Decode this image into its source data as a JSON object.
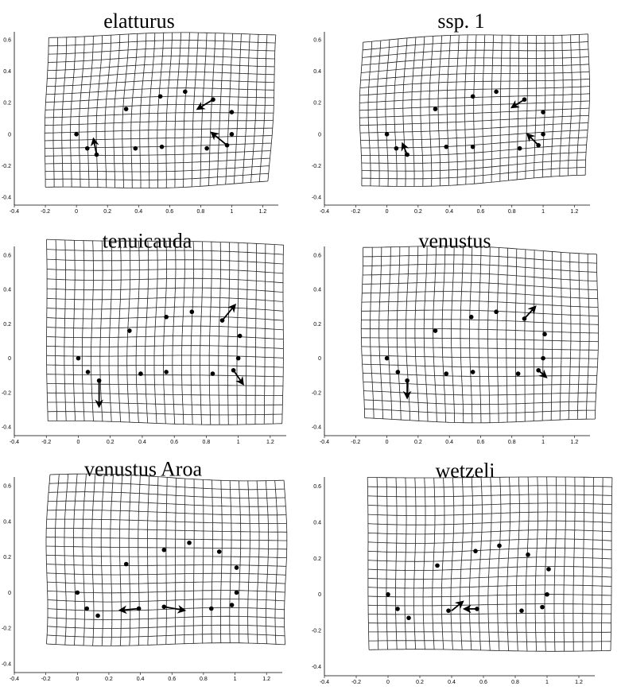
{
  "figure": {
    "panels": [
      {
        "title": "elatturus",
        "x_ticks": [
          "-0.4",
          "-0.2",
          "0",
          "0.2",
          "0.4",
          "0.6",
          "0.8",
          "1",
          "1.2"
        ],
        "y_ticks": [
          "0.6",
          "0.4",
          "0.2",
          "0",
          "-0.2",
          "-0.4"
        ]
      },
      {
        "title": "ssp. 1",
        "x_ticks": [
          "-0.4",
          "-0.2",
          "0",
          "0.2",
          "0.4",
          "0.6",
          "0.8",
          "1",
          "1.2"
        ],
        "y_ticks": [
          "0.6",
          "0.4",
          "0.2",
          "0",
          "-0.2",
          "-0.4"
        ]
      },
      {
        "title": "tenuicauda",
        "x_ticks": [
          "-0.4",
          "-0.2",
          "0",
          "0.2",
          "0.4",
          "0.6",
          "0.8",
          "1",
          "1.2"
        ],
        "y_ticks": [
          "0.6",
          "0.4",
          "0.2",
          "0",
          "-0.2",
          "-0.4"
        ]
      },
      {
        "title": "venustus",
        "x_ticks": [
          "-0.4",
          "-0.2",
          "0",
          "0.2",
          "0.4",
          "0.6",
          "0.8",
          "1",
          "1.2"
        ],
        "y_ticks": [
          "0.6",
          "0.4",
          "0.2",
          "0",
          "-0.2",
          "-0.4"
        ]
      },
      {
        "title": "venustus Aroa",
        "x_ticks": [
          "-0.4",
          "-0.2",
          "0",
          "0.2",
          "0.4",
          "0.6",
          "0.8",
          "1",
          "1.2"
        ],
        "y_ticks": [
          "0.6",
          "0.4",
          "0.2",
          "0",
          "-0.2",
          "-0.4"
        ]
      },
      {
        "title": "wetzeli",
        "x_ticks": [
          "-0.4",
          "-0.2",
          "0",
          "0.2",
          "0.4",
          "0.6",
          "0.8",
          "1",
          "1.2"
        ],
        "y_ticks": [
          "0.6",
          "0.4",
          "0.2",
          "0",
          "-0.2",
          "-0.4"
        ]
      }
    ]
  },
  "chart_data": [
    {
      "type": "scatter",
      "title": "elatturus",
      "xlim": [
        -0.4,
        1.3
      ],
      "ylim": [
        -0.45,
        0.65
      ],
      "grid": "deformation grid",
      "landmarks": [
        {
          "x": 0.0,
          "y": 0.0
        },
        {
          "x": 0.07,
          "y": -0.09
        },
        {
          "x": 0.13,
          "y": -0.13
        },
        {
          "x": 0.32,
          "y": 0.16
        },
        {
          "x": 0.38,
          "y": -0.09
        },
        {
          "x": 0.54,
          "y": 0.24
        },
        {
          "x": 0.55,
          "y": -0.08
        },
        {
          "x": 0.7,
          "y": 0.27
        },
        {
          "x": 0.88,
          "y": 0.22
        },
        {
          "x": 1.0,
          "y": 0.14
        },
        {
          "x": 1.0,
          "y": 0.0
        },
        {
          "x": 0.84,
          "y": -0.09
        },
        {
          "x": 0.97,
          "y": -0.07
        }
      ],
      "vectors": [
        {
          "x": 0.13,
          "y": -0.13,
          "dx": -0.02,
          "dy": 0.1
        },
        {
          "x": 0.88,
          "y": 0.22,
          "dx": -0.1,
          "dy": -0.06
        },
        {
          "x": 0.97,
          "y": -0.07,
          "dx": -0.1,
          "dy": 0.08
        }
      ]
    },
    {
      "type": "scatter",
      "title": "ssp. 1",
      "xlim": [
        -0.4,
        1.3
      ],
      "ylim": [
        -0.45,
        0.65
      ],
      "grid": "deformation grid",
      "landmarks": [
        {
          "x": 0.0,
          "y": 0.0
        },
        {
          "x": 0.06,
          "y": -0.09
        },
        {
          "x": 0.13,
          "y": -0.13
        },
        {
          "x": 0.31,
          "y": 0.16
        },
        {
          "x": 0.38,
          "y": -0.08
        },
        {
          "x": 0.55,
          "y": 0.24
        },
        {
          "x": 0.55,
          "y": -0.08
        },
        {
          "x": 0.7,
          "y": 0.27
        },
        {
          "x": 0.88,
          "y": 0.22
        },
        {
          "x": 1.0,
          "y": 0.14
        },
        {
          "x": 1.0,
          "y": 0.0
        },
        {
          "x": 0.85,
          "y": -0.09
        },
        {
          "x": 0.97,
          "y": -0.07
        }
      ],
      "vectors": [
        {
          "x": 0.13,
          "y": -0.13,
          "dx": -0.03,
          "dy": 0.07
        },
        {
          "x": 0.88,
          "y": 0.22,
          "dx": -0.08,
          "dy": -0.05
        },
        {
          "x": 0.97,
          "y": -0.07,
          "dx": -0.07,
          "dy": 0.07
        }
      ]
    },
    {
      "type": "scatter",
      "title": "tenuicauda",
      "xlim": [
        -0.4,
        1.3
      ],
      "ylim": [
        -0.45,
        0.65
      ],
      "grid": "deformation grid",
      "landmarks": [
        {
          "x": 0.0,
          "y": 0.0
        },
        {
          "x": 0.06,
          "y": -0.08
        },
        {
          "x": 0.13,
          "y": -0.13
        },
        {
          "x": 0.32,
          "y": 0.16
        },
        {
          "x": 0.39,
          "y": -0.09
        },
        {
          "x": 0.55,
          "y": 0.24
        },
        {
          "x": 0.55,
          "y": -0.08
        },
        {
          "x": 0.71,
          "y": 0.27
        },
        {
          "x": 0.9,
          "y": 0.22
        },
        {
          "x": 1.01,
          "y": 0.13
        },
        {
          "x": 1.0,
          "y": 0.0
        },
        {
          "x": 0.84,
          "y": -0.09
        },
        {
          "x": 0.97,
          "y": -0.07
        }
      ],
      "vectors": [
        {
          "x": 0.13,
          "y": -0.13,
          "dx": 0.0,
          "dy": -0.15
        },
        {
          "x": 0.9,
          "y": 0.22,
          "dx": 0.08,
          "dy": 0.09
        },
        {
          "x": 0.97,
          "y": -0.07,
          "dx": 0.06,
          "dy": -0.08
        }
      ]
    },
    {
      "type": "scatter",
      "title": "venustus",
      "xlim": [
        -0.4,
        1.3
      ],
      "ylim": [
        -0.45,
        0.65
      ],
      "grid": "deformation grid",
      "landmarks": [
        {
          "x": 0.0,
          "y": 0.0
        },
        {
          "x": 0.07,
          "y": -0.08
        },
        {
          "x": 0.13,
          "y": -0.13
        },
        {
          "x": 0.31,
          "y": 0.16
        },
        {
          "x": 0.38,
          "y": -0.09
        },
        {
          "x": 0.54,
          "y": 0.24
        },
        {
          "x": 0.55,
          "y": -0.08
        },
        {
          "x": 0.7,
          "y": 0.27
        },
        {
          "x": 0.88,
          "y": 0.23
        },
        {
          "x": 1.01,
          "y": 0.14
        },
        {
          "x": 1.0,
          "y": 0.0
        },
        {
          "x": 0.84,
          "y": -0.09
        },
        {
          "x": 0.97,
          "y": -0.07
        }
      ],
      "vectors": [
        {
          "x": 0.13,
          "y": -0.13,
          "dx": 0.0,
          "dy": -0.1
        },
        {
          "x": 0.88,
          "y": 0.23,
          "dx": 0.07,
          "dy": 0.07
        },
        {
          "x": 0.97,
          "y": -0.07,
          "dx": 0.05,
          "dy": -0.04
        }
      ]
    },
    {
      "type": "scatter",
      "title": "venustus Aroa",
      "xlim": [
        -0.4,
        1.3
      ],
      "ylim": [
        -0.45,
        0.65
      ],
      "grid": "deformation grid",
      "landmarks": [
        {
          "x": 0.0,
          "y": 0.0
        },
        {
          "x": 0.06,
          "y": -0.09
        },
        {
          "x": 0.13,
          "y": -0.13
        },
        {
          "x": 0.31,
          "y": 0.16
        },
        {
          "x": 0.39,
          "y": -0.09
        },
        {
          "x": 0.55,
          "y": 0.24
        },
        {
          "x": 0.55,
          "y": -0.08
        },
        {
          "x": 0.71,
          "y": 0.28
        },
        {
          "x": 0.9,
          "y": 0.23
        },
        {
          "x": 1.01,
          "y": 0.14
        },
        {
          "x": 1.01,
          "y": 0.0
        },
        {
          "x": 0.85,
          "y": -0.09
        },
        {
          "x": 0.98,
          "y": -0.07
        }
      ],
      "vectors": [
        {
          "x": 0.39,
          "y": -0.09,
          "dx": -0.12,
          "dy": -0.01
        },
        {
          "x": 0.55,
          "y": -0.08,
          "dx": 0.13,
          "dy": -0.02
        }
      ]
    },
    {
      "type": "scatter",
      "title": "wetzeli",
      "xlim": [
        -0.4,
        1.3
      ],
      "ylim": [
        -0.45,
        0.65
      ],
      "grid": "deformation grid",
      "landmarks": [
        {
          "x": 0.0,
          "y": 0.0
        },
        {
          "x": 0.06,
          "y": -0.08
        },
        {
          "x": 0.13,
          "y": -0.13
        },
        {
          "x": 0.31,
          "y": 0.16
        },
        {
          "x": 0.38,
          "y": -0.09
        },
        {
          "x": 0.55,
          "y": 0.24
        },
        {
          "x": 0.56,
          "y": -0.08
        },
        {
          "x": 0.7,
          "y": 0.27
        },
        {
          "x": 0.88,
          "y": 0.22
        },
        {
          "x": 1.01,
          "y": 0.14
        },
        {
          "x": 1.0,
          "y": 0.0
        },
        {
          "x": 0.84,
          "y": -0.09
        },
        {
          "x": 0.97,
          "y": -0.07
        }
      ],
      "vectors": [
        {
          "x": 0.4,
          "y": -0.09,
          "dx": 0.07,
          "dy": 0.05
        },
        {
          "x": 0.56,
          "y": -0.08,
          "dx": -0.08,
          "dy": 0.0
        }
      ]
    }
  ]
}
